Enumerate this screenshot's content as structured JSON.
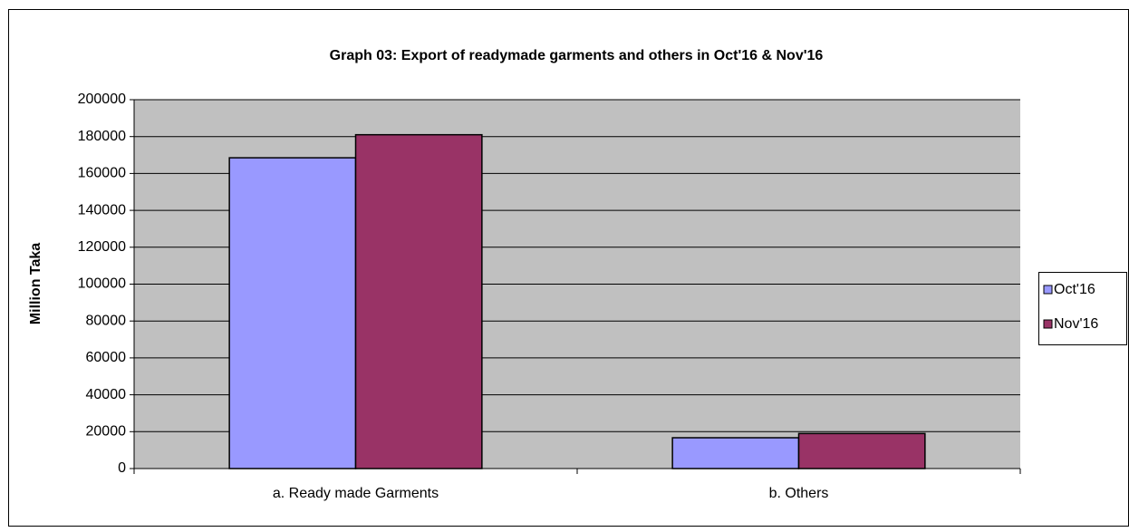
{
  "chart_data": {
    "type": "bar",
    "title": "Graph 03: Export of readymade  garments and others in  Oct'16 & Nov'16",
    "y_label": "Million  Taka",
    "categories": [
      "a. Ready made Garments",
      "b. Others"
    ],
    "series": [
      {
        "name": "Oct'16",
        "color": "#9999ff",
        "values": [
          168500,
          16700
        ]
      },
      {
        "name": "Nov'16",
        "color": "#993366",
        "values": [
          181000,
          19000
        ]
      }
    ],
    "ylim": [
      0,
      200000
    ],
    "yticks": [
      0,
      20000,
      40000,
      60000,
      80000,
      100000,
      120000,
      140000,
      160000,
      180000,
      200000
    ],
    "grid": true,
    "legend": "right"
  }
}
